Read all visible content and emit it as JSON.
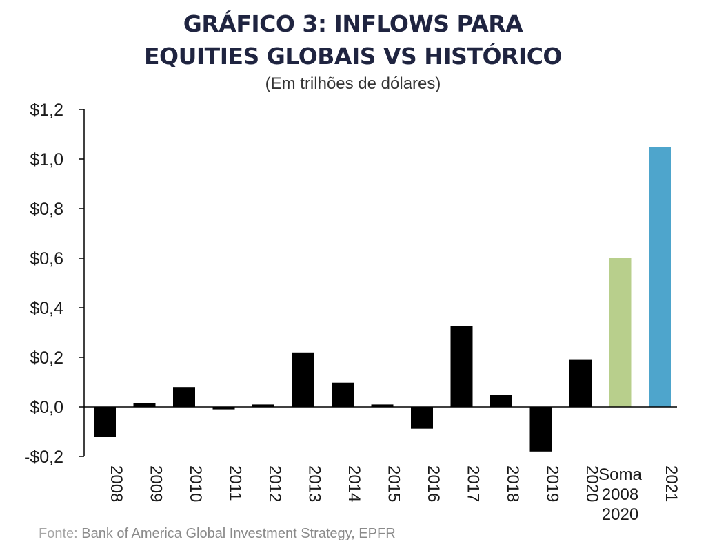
{
  "header": {
    "title_line1": "GRÁFICO 3: INFLOWS PARA",
    "title_line2": "EQUITIES GLOBAIS VS HISTÓRICO",
    "subtitle": "(Em trilhões de dólares)"
  },
  "footer": {
    "source_lead": "Fonte:",
    "source_text": " Bank of America Global Investment Strategy, EPFR"
  },
  "chart_data": {
    "type": "bar",
    "title": "GRÁFICO 3: INFLOWS PARA EQUITIES GLOBAIS VS HISTÓRICO",
    "subtitle": "(Em trilhões de dólares)",
    "categories": [
      "2008",
      "2009",
      "2010",
      "2011",
      "2012",
      "2013",
      "2014",
      "2015",
      "2016",
      "2017",
      "2018",
      "2019",
      "2020",
      "Soma 2008 2020",
      "2021"
    ],
    "category_lines": [
      [
        "2008"
      ],
      [
        "2009"
      ],
      [
        "2010"
      ],
      [
        "2011"
      ],
      [
        "2012"
      ],
      [
        "2013"
      ],
      [
        "2014"
      ],
      [
        "2015"
      ],
      [
        "2016"
      ],
      [
        "2017"
      ],
      [
        "2018"
      ],
      [
        "2019"
      ],
      [
        "2020"
      ],
      [
        "Soma",
        "2008",
        "2020"
      ],
      [
        "2021"
      ]
    ],
    "values": [
      -0.12,
      0.015,
      0.08,
      -0.01,
      0.01,
      0.22,
      0.098,
      0.01,
      -0.088,
      0.325,
      0.05,
      -0.18,
      0.19,
      0.6,
      1.05
    ],
    "colors": [
      "#000000",
      "#000000",
      "#000000",
      "#000000",
      "#000000",
      "#000000",
      "#000000",
      "#000000",
      "#000000",
      "#000000",
      "#000000",
      "#000000",
      "#000000",
      "#b8cf8c",
      "#4ea5cc"
    ],
    "ylim": [
      -0.2,
      1.2
    ],
    "yticks": [
      1.2,
      1.0,
      0.8,
      0.6,
      0.4,
      0.2,
      0.0,
      -0.2
    ],
    "ytick_labels": [
      "$1,2",
      "$1,0",
      "$0,8",
      "$0,6",
      "$0,4",
      "$0,2",
      "$0,0",
      "-$0,2"
    ],
    "xlabel": "",
    "ylabel": "",
    "grid": false,
    "legend": "none"
  }
}
